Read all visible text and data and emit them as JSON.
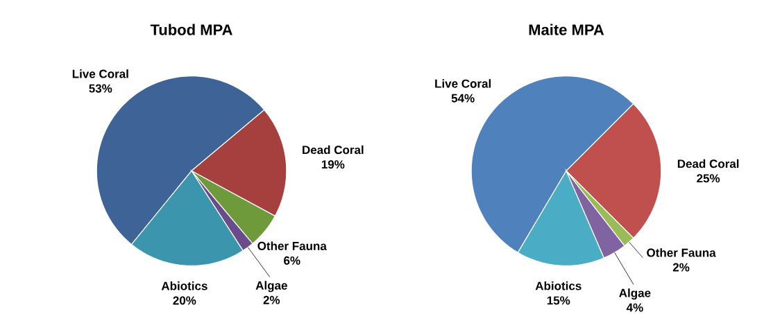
{
  "chart_data": [
    {
      "type": "pie",
      "title": "Tubod MPA",
      "categories": [
        "Live Coral",
        "Dead Coral",
        "Other Fauna",
        "Algae",
        "Abiotics"
      ],
      "values": [
        53,
        19,
        6,
        2,
        20
      ],
      "value_labels": [
        "53%",
        "19%",
        "6%",
        "2%",
        "20%"
      ],
      "colors": [
        "#3e6497",
        "#a5403e",
        "#6f9a3b",
        "#6a4c8c",
        "#3b95ac"
      ]
    },
    {
      "type": "pie",
      "title": "Maite MPA",
      "categories": [
        "Live Coral",
        "Dead Coral",
        "Other Fauna",
        "Algae",
        "Abiotics"
      ],
      "values": [
        54,
        25,
        2,
        4,
        15
      ],
      "value_labels": [
        "54%",
        "25%",
        "2%",
        "4%",
        "15%"
      ],
      "colors": [
        "#4f81bd",
        "#c0504d",
        "#9bbb59",
        "#8064a2",
        "#4bacc6"
      ]
    }
  ]
}
